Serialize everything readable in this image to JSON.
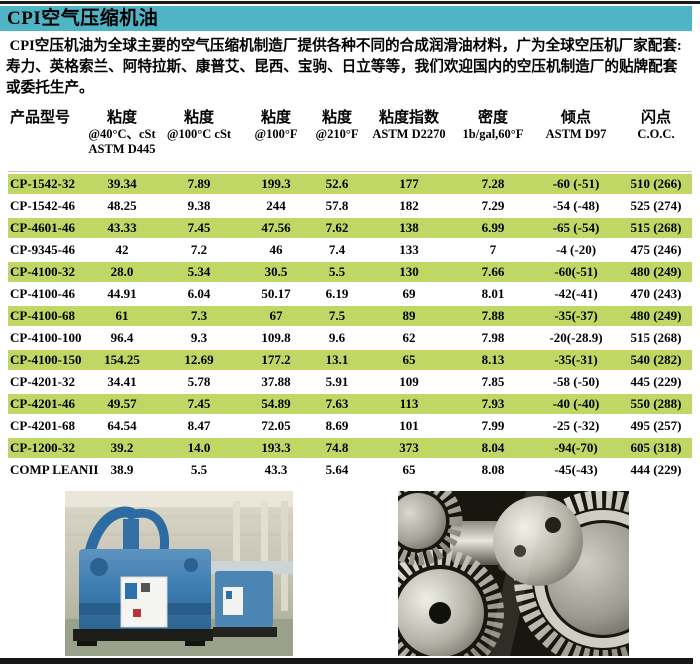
{
  "page": {
    "title": "CPI空气压缩机油",
    "intro_lines": [
      " CPI空压机油为全球主要的空气压缩机制造厂提供各种不同的合成润滑油材料，广为全球空压机厂家配套:",
      "寿力、英格索兰、阿特拉斯、康普艾、昆西、宝驹、日立等等，我们欢迎国内的空压机制造厂的贴牌配套",
      "或委托生产。"
    ]
  },
  "table": {
    "headers": [
      [
        "产品型号",
        "",
        ""
      ],
      [
        "粘度",
        "@40°C、cSt",
        "ASTM D445"
      ],
      [
        "粘度",
        "@100°C cSt",
        ""
      ],
      [
        "粘度",
        "@100°F",
        ""
      ],
      [
        "粘度",
        "@210°F",
        ""
      ],
      [
        "粘度指数",
        "ASTM D2270",
        ""
      ],
      [
        "密度",
        "1b/gal,60°F",
        ""
      ],
      [
        "倾点",
        "ASTM D97",
        ""
      ],
      [
        "闪点",
        "C.O.C.",
        ""
      ]
    ],
    "rows": [
      [
        "CP-1542-32",
        "39.34",
        "7.89",
        "199.3",
        "52.6",
        "177",
        "7.28",
        "-60 (-51)",
        "510 (266)"
      ],
      [
        "CP-1542-46",
        "48.25",
        "9.38",
        "244",
        "57.8",
        "182",
        "7.29",
        "-54 (-48)",
        "525 (274)"
      ],
      [
        "CP-4601-46",
        "43.33",
        "7.45",
        "47.56",
        "7.62",
        "138",
        "6.99",
        "-65 (-54)",
        "515 (268)"
      ],
      [
        "CP-9345-46",
        "42",
        "7.2",
        "46",
        "7.4",
        "133",
        "7",
        "-4 (-20)",
        "475 (246)"
      ],
      [
        "CP-4100-32",
        "28.0",
        "5.34",
        "30.5",
        "5.5",
        "130",
        "7.66",
        "-60(-51)",
        "480 (249)"
      ],
      [
        "CP-4100-46",
        "44.91",
        "6.04",
        "50.17",
        "6.19",
        "69",
        "8.01",
        "-42(-41)",
        "470 (243)"
      ],
      [
        "CP-4100-68",
        "61",
        "7.3",
        "67",
        "7.5",
        "89",
        "7.88",
        "-35(-37)",
        "480 (249)"
      ],
      [
        "CP-4100-100",
        "96.4",
        "9.3",
        "109.8",
        "9.6",
        "62",
        "7.98",
        "-20(-28.9)",
        "515 (268)"
      ],
      [
        "CP-4100-150",
        "154.25",
        "12.69",
        "177.2",
        "13.1",
        "65",
        "8.13",
        "-35(-31)",
        "540 (282)"
      ],
      [
        "CP-4201-32",
        "34.41",
        "5.78",
        "37.88",
        "5.91",
        "109",
        "7.85",
        "-58 (-50)",
        "445 (229)"
      ],
      [
        "CP-4201-46",
        "49.57",
        "7.45",
        "54.89",
        "7.63",
        "113",
        "7.93",
        "-40 (-40)",
        "550 (288)"
      ],
      [
        "CP-4201-68",
        "64.54",
        "8.47",
        "72.05",
        "8.69",
        "101",
        "7.99",
        "-25 (-32)",
        "495 (257)"
      ],
      [
        "CP-1200-32",
        "39.2",
        "14.0",
        "193.3",
        "74.8",
        "373",
        "8.04",
        "-94(-70)",
        "605 (318)"
      ],
      [
        "COMP LEANII",
        "38.9",
        "5.5",
        "43.3",
        "5.64",
        "65",
        "8.08",
        "-45(-43)",
        "444 (229)"
      ]
    ]
  },
  "images": {
    "left_alt": "blue air compressor units in factory hall",
    "right_alt": "close-up of steel gears"
  },
  "colors": {
    "accent_teal": "#4fb5c6",
    "row_green": "#c0d765",
    "bar_black": "#1a1a1a"
  }
}
